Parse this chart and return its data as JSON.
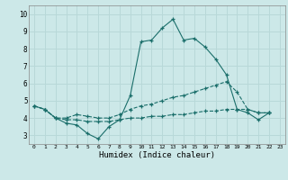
{
  "xlabel": "Humidex (Indice chaleur)",
  "x_ticks": [
    0,
    1,
    2,
    3,
    4,
    5,
    6,
    7,
    8,
    9,
    10,
    11,
    12,
    13,
    14,
    15,
    16,
    17,
    18,
    19,
    20,
    21,
    22,
    23
  ],
  "ylim": [
    2.5,
    10.5
  ],
  "xlim": [
    -0.5,
    23.5
  ],
  "bg_color": "#cce8e8",
  "grid_color": "#b8d8d8",
  "line_color": "#1a6e6a",
  "series": [
    [
      4.7,
      4.5,
      4.0,
      3.7,
      3.6,
      3.1,
      2.8,
      3.5,
      3.9,
      5.3,
      8.4,
      8.5,
      9.2,
      9.7,
      8.5,
      8.6,
      8.1,
      7.4,
      6.5,
      4.5,
      4.3,
      3.9,
      4.3,
      null
    ],
    [
      4.7,
      4.5,
      4.0,
      4.0,
      4.2,
      4.1,
      4.0,
      4.0,
      4.2,
      4.5,
      4.7,
      4.8,
      5.0,
      5.2,
      5.3,
      5.5,
      5.7,
      5.9,
      6.1,
      5.5,
      4.5,
      4.3,
      4.3,
      null
    ],
    [
      4.7,
      4.5,
      4.0,
      3.9,
      3.9,
      3.8,
      3.8,
      3.8,
      3.9,
      4.0,
      4.0,
      4.1,
      4.1,
      4.2,
      4.2,
      4.3,
      4.4,
      4.4,
      4.5,
      4.5,
      4.5,
      4.3,
      4.3,
      null
    ]
  ],
  "styles": [
    "-",
    "--",
    "--"
  ],
  "y_ticks": [
    3,
    4,
    5,
    6,
    7,
    8,
    9,
    10
  ]
}
